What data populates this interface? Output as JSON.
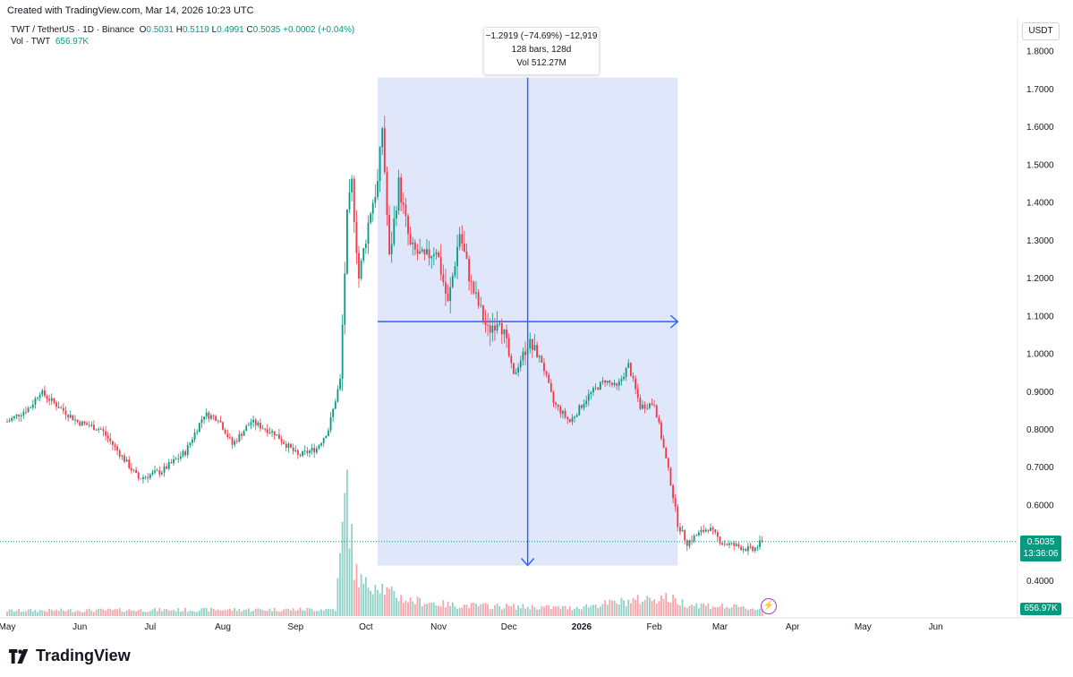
{
  "header": {
    "created": "Created with TradingView.com, Mar 14, 2026 10:23 UTC",
    "symbol": "TWT / TetherUS · 1D · Binance",
    "open_label": "O",
    "open": "0.5031",
    "high_label": "H",
    "high": "0.5119",
    "low_label": "L",
    "low": "0.4991",
    "close_label": "C",
    "close": "0.5035",
    "change": "+0.0002 (+0.04%)",
    "vol_label": "Vol · TWT",
    "vol_value": "656.97K",
    "currency": "USDT"
  },
  "tooltip": {
    "line1": "−1.2919 (−74.69%) −12,919",
    "line2": "128 bars, 128d",
    "line3": "Vol 512.27M"
  },
  "price_tag": {
    "price": "0.5035",
    "countdown": "13:36:06"
  },
  "volume_tag": "656.97K",
  "brand": "TradingView",
  "colors": {
    "up": "#089981",
    "down": "#f23645",
    "measure_fill": "#dde4fb",
    "measure_line": "#2962ff",
    "price_line": "#089981"
  },
  "chart_data": {
    "type": "candlestick",
    "y_ticks": [
      "1.8000",
      "1.7000",
      "1.6000",
      "1.5000",
      "1.4000",
      "1.3000",
      "1.2000",
      "1.1000",
      "1.0000",
      "0.9000",
      "0.8000",
      "0.7000",
      "0.6000",
      "0.5000",
      "0.4000"
    ],
    "y_tick_values": [
      1.8,
      1.7,
      1.6,
      1.5,
      1.4,
      1.3,
      1.2,
      1.1,
      1.0,
      0.9,
      0.8,
      0.7,
      0.6,
      0.5,
      0.4
    ],
    "x_ticks": [
      {
        "label": "May",
        "day": 0
      },
      {
        "label": "Jun",
        "day": 31
      },
      {
        "label": "Jul",
        "day": 61
      },
      {
        "label": "Aug",
        "day": 92
      },
      {
        "label": "Sep",
        "day": 123
      },
      {
        "label": "Oct",
        "day": 153
      },
      {
        "label": "Nov",
        "day": 184
      },
      {
        "label": "Dec",
        "day": 214
      },
      {
        "label": "2026",
        "day": 245
      },
      {
        "label": "Feb",
        "day": 276
      },
      {
        "label": "Mar",
        "day": 304
      },
      {
        "label": "Apr",
        "day": 335
      },
      {
        "label": "May",
        "day": 365
      },
      {
        "label": "Jun",
        "day": 396
      }
    ],
    "last_price": 0.5035,
    "measure": {
      "start_day": 158,
      "end_day": 286,
      "start_price": 1.73,
      "end_price": 0.44,
      "mid_price": 1.085
    },
    "closes_anchors": [
      {
        "day": 0,
        "price": 0.82
      },
      {
        "day": 10,
        "price": 0.86
      },
      {
        "day": 14,
        "price": 0.9
      },
      {
        "day": 22,
        "price": 0.86
      },
      {
        "day": 30,
        "price": 0.82
      },
      {
        "day": 40,
        "price": 0.8
      },
      {
        "day": 50,
        "price": 0.72
      },
      {
        "day": 56,
        "price": 0.67
      },
      {
        "day": 66,
        "price": 0.69
      },
      {
        "day": 76,
        "price": 0.74
      },
      {
        "day": 84,
        "price": 0.84
      },
      {
        "day": 90,
        "price": 0.83
      },
      {
        "day": 96,
        "price": 0.76
      },
      {
        "day": 104,
        "price": 0.82
      },
      {
        "day": 114,
        "price": 0.79
      },
      {
        "day": 124,
        "price": 0.73
      },
      {
        "day": 132,
        "price": 0.75
      },
      {
        "day": 137,
        "price": 0.8
      },
      {
        "day": 142,
        "price": 0.93
      },
      {
        "day": 145,
        "price": 1.36
      },
      {
        "day": 147,
        "price": 1.45
      },
      {
        "day": 150,
        "price": 1.2
      },
      {
        "day": 155,
        "price": 1.38
      },
      {
        "day": 158,
        "price": 1.45
      },
      {
        "day": 160,
        "price": 1.6
      },
      {
        "day": 163,
        "price": 1.25
      },
      {
        "day": 167,
        "price": 1.45
      },
      {
        "day": 172,
        "price": 1.28
      },
      {
        "day": 178,
        "price": 1.25
      },
      {
        "day": 183,
        "price": 1.28
      },
      {
        "day": 188,
        "price": 1.13
      },
      {
        "day": 193,
        "price": 1.32
      },
      {
        "day": 198,
        "price": 1.18
      },
      {
        "day": 205,
        "price": 1.06
      },
      {
        "day": 210,
        "price": 1.1
      },
      {
        "day": 216,
        "price": 0.94
      },
      {
        "day": 222,
        "price": 1.03
      },
      {
        "day": 228,
        "price": 0.98
      },
      {
        "day": 233,
        "price": 0.87
      },
      {
        "day": 240,
        "price": 0.82
      },
      {
        "day": 248,
        "price": 0.89
      },
      {
        "day": 255,
        "price": 0.93
      },
      {
        "day": 260,
        "price": 0.91
      },
      {
        "day": 265,
        "price": 0.97
      },
      {
        "day": 270,
        "price": 0.86
      },
      {
        "day": 276,
        "price": 0.87
      },
      {
        "day": 281,
        "price": 0.72
      },
      {
        "day": 283,
        "price": 0.66
      },
      {
        "day": 286,
        "price": 0.55
      },
      {
        "day": 290,
        "price": 0.5
      },
      {
        "day": 294,
        "price": 0.52
      },
      {
        "day": 299,
        "price": 0.54
      },
      {
        "day": 305,
        "price": 0.5
      },
      {
        "day": 312,
        "price": 0.49
      },
      {
        "day": 318,
        "price": 0.48
      },
      {
        "day": 322,
        "price": 0.5035
      }
    ],
    "volume_anchors": [
      {
        "day": 0,
        "v": 0.04
      },
      {
        "day": 140,
        "v": 0.05
      },
      {
        "day": 143,
        "v": 0.6
      },
      {
        "day": 145,
        "v": 0.98
      },
      {
        "day": 146,
        "v": 0.7
      },
      {
        "day": 148,
        "v": 0.35
      },
      {
        "day": 152,
        "v": 0.22
      },
      {
        "day": 158,
        "v": 0.25
      },
      {
        "day": 162,
        "v": 0.18
      },
      {
        "day": 170,
        "v": 0.12
      },
      {
        "day": 190,
        "v": 0.08
      },
      {
        "day": 240,
        "v": 0.06
      },
      {
        "day": 280,
        "v": 0.14
      },
      {
        "day": 290,
        "v": 0.09
      },
      {
        "day": 322,
        "v": 0.05
      }
    ]
  }
}
